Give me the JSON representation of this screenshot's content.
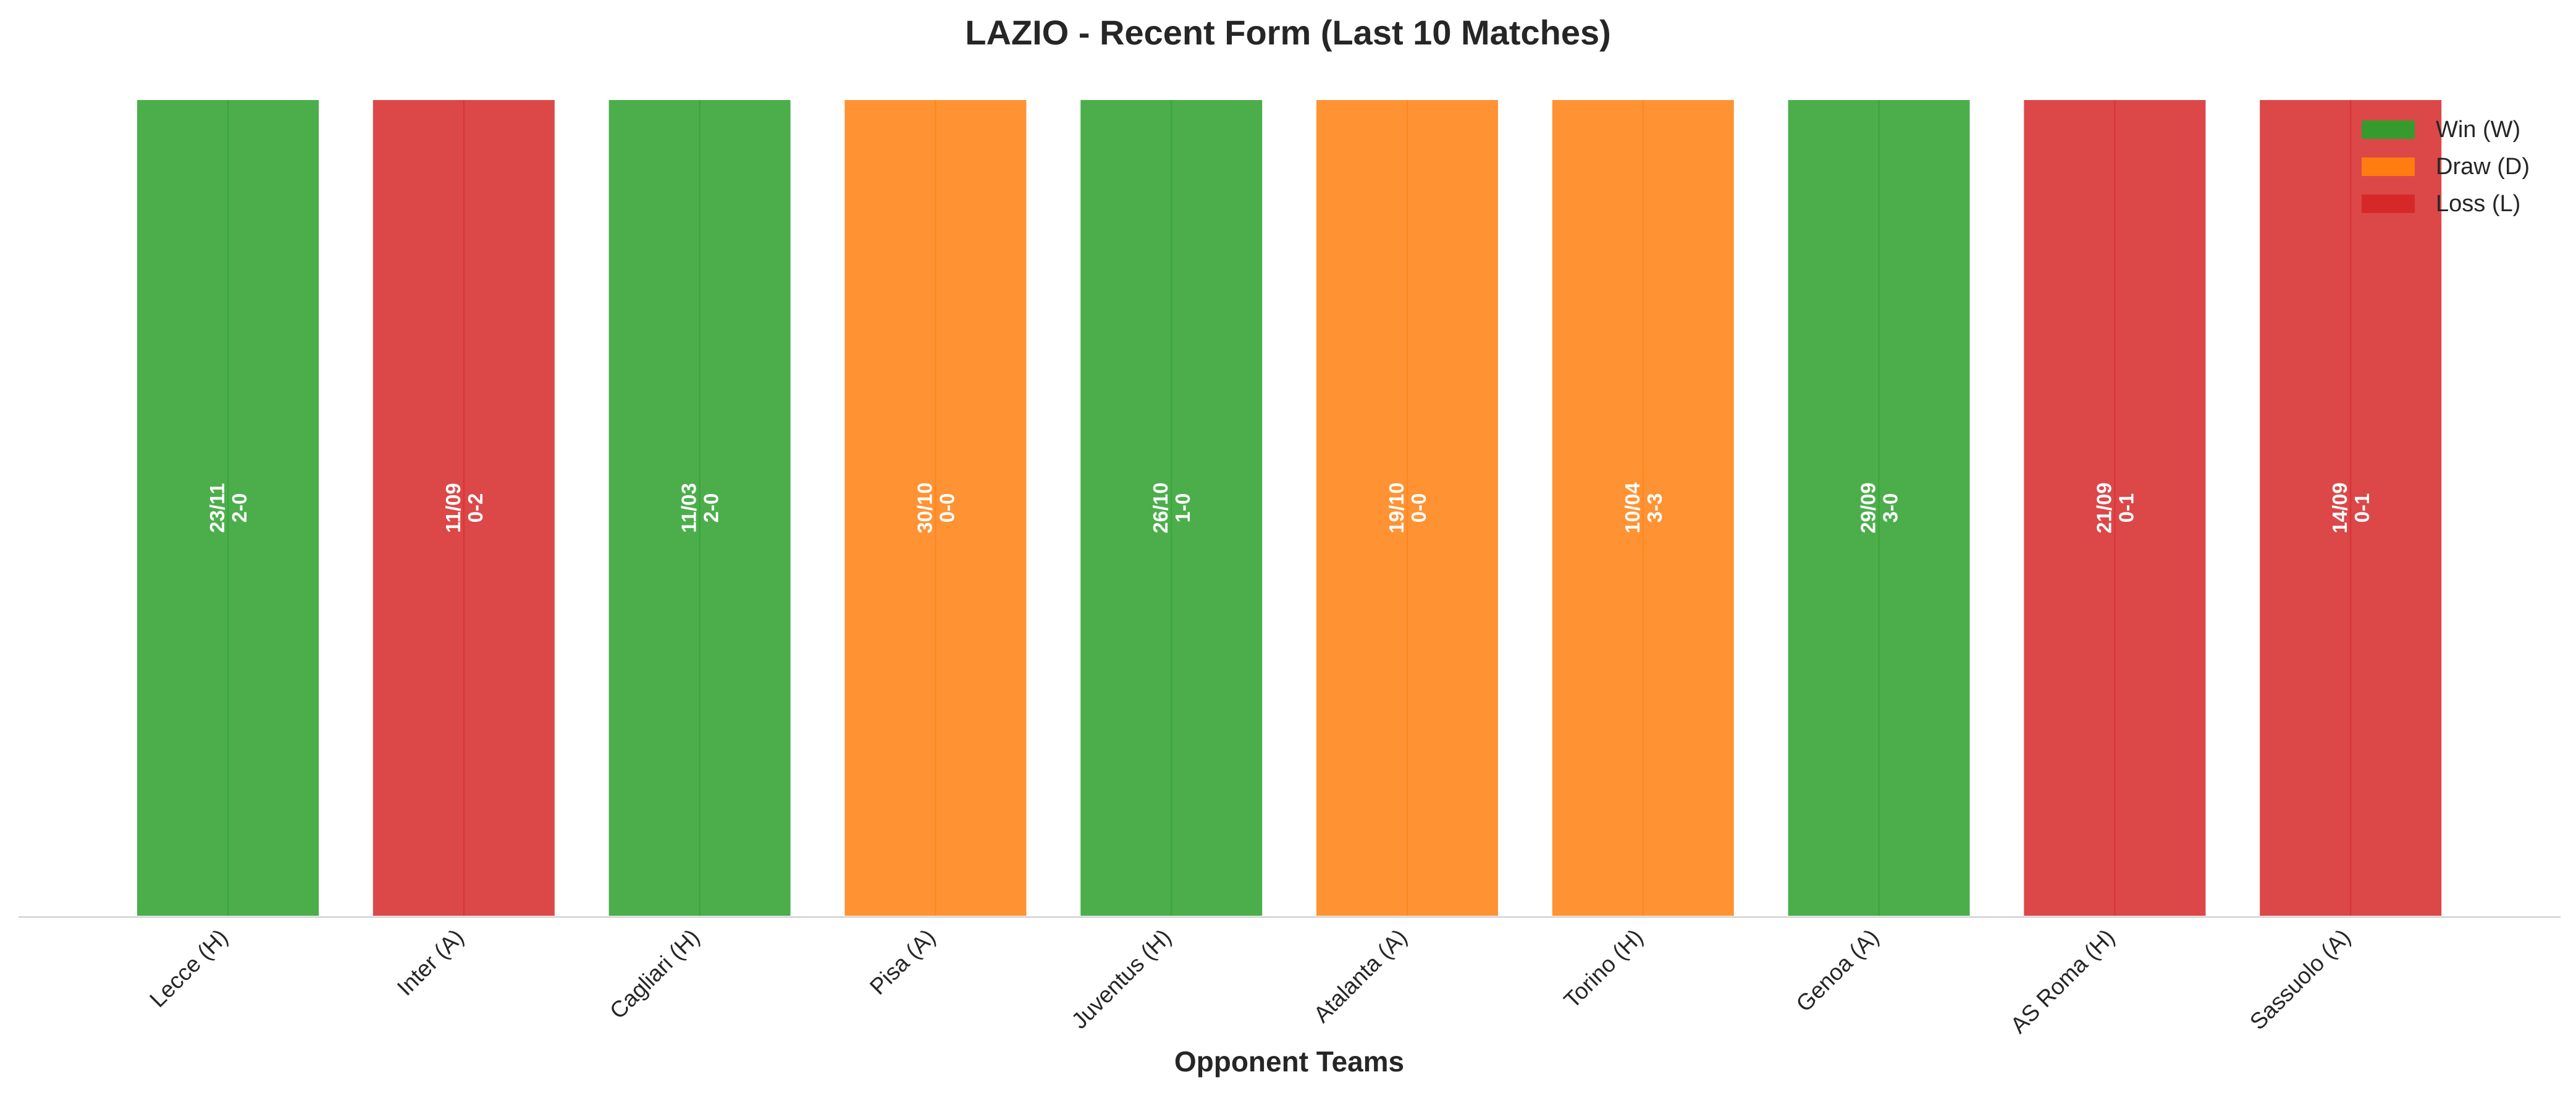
{
  "chart_data": {
    "type": "bar",
    "title": "LAZIO - Recent Form (Last 10 Matches)",
    "xlabel": "Opponent Teams",
    "ylabel": "",
    "ylim": [
      0,
      1
    ],
    "grid": false,
    "legend_position": "top-right",
    "categories": [
      "Lecce (H)",
      "Inter (A)",
      "Cagliari (H)",
      "Pisa (A)",
      "Juventus (H)",
      "Atalanta (A)",
      "Torino (H)",
      "Genoa (A)",
      "AS Roma (H)",
      "Sassuolo (A)"
    ],
    "values": [
      1,
      1,
      1,
      1,
      1,
      1,
      1,
      1,
      1,
      1
    ],
    "results": [
      "W",
      "L",
      "W",
      "D",
      "W",
      "D",
      "D",
      "W",
      "L",
      "L"
    ],
    "dates": [
      "23/11",
      "11/09",
      "11/03",
      "30/10",
      "26/10",
      "19/10",
      "10/04",
      "29/09",
      "21/09",
      "14/09"
    ],
    "scores": [
      "2-0",
      "0-2",
      "2-0",
      "0-0",
      "1-0",
      "0-0",
      "3-3",
      "3-0",
      "0-1",
      "0-1"
    ],
    "legend": [
      {
        "key": "W",
        "label": "Win (W)",
        "color": "#2ca02c"
      },
      {
        "key": "D",
        "label": "Draw (D)",
        "color": "#ff7f0e"
      },
      {
        "key": "L",
        "label": "Loss (L)",
        "color": "#d62728"
      }
    ]
  }
}
